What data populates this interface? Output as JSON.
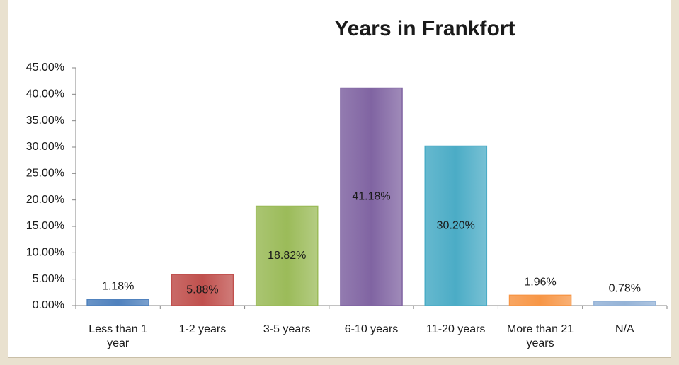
{
  "chart_data": {
    "type": "bar",
    "title": "Years in Frankfort",
    "categories": [
      "Less than 1 year",
      "1-2 years",
      "3-5 years",
      "6-10 years",
      "11-20 years",
      "More than 21 years",
      "N/A"
    ],
    "values": [
      1.18,
      5.88,
      18.82,
      41.18,
      30.2,
      1.96,
      0.78
    ],
    "value_labels": [
      "1.18%",
      "5.88%",
      "18.82%",
      "41.18%",
      "30.20%",
      "1.96%",
      "0.78%"
    ],
    "colors": [
      "#4f81bd",
      "#c0504d",
      "#9bbb59",
      "#8064a2",
      "#4bacc6",
      "#f79646",
      "#95b3d7"
    ],
    "ylim": [
      0,
      45
    ],
    "yticks": [
      {
        "value": 0,
        "label": "0.00%"
      },
      {
        "value": 5,
        "label": "5.00%"
      },
      {
        "value": 10,
        "label": "10.00%"
      },
      {
        "value": 15,
        "label": "15.00%"
      },
      {
        "value": 20,
        "label": "20.00%"
      },
      {
        "value": 25,
        "label": "25.00%"
      },
      {
        "value": 30,
        "label": "30.00%"
      },
      {
        "value": 35,
        "label": "35.00%"
      },
      {
        "value": 40,
        "label": "40.00%"
      },
      {
        "value": 45,
        "label": "45.00%"
      }
    ],
    "grid": false
  }
}
